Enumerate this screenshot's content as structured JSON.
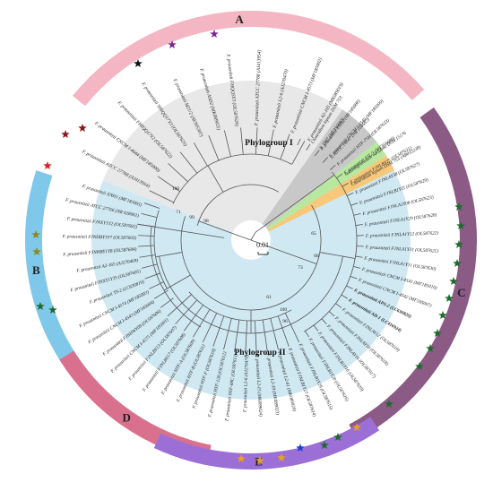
{
  "phylogroups": {
    "group1": "Phylogroup I",
    "group2": "Phylogroup II"
  },
  "scale_bar": "0.01",
  "arcs": [
    {
      "label": "A",
      "color": "#f4b6c2"
    },
    {
      "label": "B",
      "color": "#7fc8ea"
    },
    {
      "label": "C",
      "color": "#8b5a85"
    },
    {
      "label": "D",
      "color": "#d9708e"
    },
    {
      "label": "E",
      "color": "#9b6fd6"
    }
  ],
  "colors": {
    "group1_bg": "#e8e8e8",
    "group2_bg": "#cfe8f1",
    "outgroup_bg": "#c8c8c8",
    "green_strip": "#b8e8a0",
    "orange_strip": "#f7c87a",
    "branch": "#555555"
  },
  "leaves_group1": [
    "F. prausnitzii ATCC 27768 (AJ413954)",
    "F. prausnitzii CNCM I-4644 (MF185000)",
    "F. prausnitzii FHIQQ17Y2 (OL587622)",
    "F. prausnitzii SHIQQ17Y3 (OL587625)",
    "F. prausnitzii M21/2 (AY305307)",
    "F. prausnitzii ASD2 (MK089021)",
    "F. prausnitzii FHQQ5Y3 (OL587626)",
    "F. prausnitzii ATCC 27768 (AJ413954)",
    "F. prausnitzii L2-6 (AJ270470)",
    "F. prausnitzii CNCM I-4573 (MF185002)",
    "F. prausnitzii A2-165 (MK089019)"
  ],
  "leaves_outgroup": [
    "S. TM7 (MF356693)",
    "S. ATCC 14847 (NR 104687)"
  ],
  "leaf_green": "Subdoligranulum variabile DSM 15176",
  "leaf_orange": "Clostridium leptum DSM 753 (AB035238)",
  "leaves_group2": [
    "Clostridium leptum DSM 753",
    "F. prausnitzii XNH2 (MF185008)",
    "F. prausnitzii CNCM I-4540 (MF185009)",
    "F. prausnitzii HTF-75H (OL587633)",
    "F. prausnitzii S3L/3 (MF356688)",
    "F. prausnitzii FJNLBY25 (OL587631)",
    "F. prausnitzii FJNLAY38 (OL587627)",
    "F. prausnitzii FJNLB1Y11 (OL587629)",
    "F. prausnitzii FJNLA1Y08 (OL587623)",
    "F. prausnitzii FJNLA1Y29 (OL587628)",
    "F. prausnitzii FJNLA1Y12 (OL587622)",
    "F. prausnitzii FJNLA1Y31 (OL587621)",
    "F. prausnitzii FJNLA1Y11 (OL587630)",
    "F. prausnitzii CNCM I-4541 (MF185010)",
    "F. prausnitzii CNCM I-4542 (MF185007)",
    "F. prausnitzii APS-2 (LC630820)",
    "F. prausnitzii AD-1 (LC416924)",
    "F. prausnitzii FJNLAY12 (OL587619)",
    "F. prausnitzii FJNLAY10 (OL587618)",
    "F. prausnitzii FJNLAY16 (OL587617)",
    "F. prausnitzii FJNLB1Y16 (OL587620)",
    "F. prausnitzii FJNLB1Y20 (OL587616)",
    "F. prausnitzii FJNLB1Y29 (OL587615)",
    "F. prausnitzii FJNLB1Y27 (OL587614)",
    "F. prausnitzii L2-61 (MK089020)",
    "F. prausnitzii L2-39 (MK089023)",
    "F. prausnitzii L2-15 (MK089024)",
    "F. prausnitzii L2-6 (AJ270470)",
    "F. prausnitzii HTF-60C (OL587613)",
    "F. prausnitzii HTF-128 (OL587612)",
    "F. prausnitzii HTF-F (OL587610)",
    "F. prausnitzii HTF-B (OL587611)",
    "F. prausnitzii HTF-A (OL587609)",
    "F. prausnitzii FJNLBY17 (OL587608)",
    "F. prausnitzii FJNLBY13 (OL587607)",
    "F. prausnitzii CNCM I-4575 (MF185001)",
    "F. prausnitzii FJNHWY09 (OL587606)",
    "F. prausnitzii CNCM I-4543 (MF185004)",
    "F. prausnitzii CNCM I-4574 (MF185003)",
    "F. prausnitzii TY-2 (LC630819)",
    "F. prausnitzii FJNXY1Y35 (OL587605)",
    "F. prausnitzii A2-165 (AJ270469)",
    "F. prausnitzii FJNHBY1Y8 (OL587604)",
    "F. prausnitzii FJNHBY1Y7 (OL587603)",
    "F. prausnitzii FJNXY1Y2 (OL587602)",
    "F. prausnitzii ATCC 27766 (NR 028961)",
    "F. prausnitzii XNH1 (MF185005)"
  ],
  "bootstrap": [
    "100",
    "71",
    "99",
    "98",
    "68",
    "65",
    "73",
    "61",
    "100",
    "96"
  ],
  "stars": [
    {
      "color": "#7b2a8f"
    },
    {
      "color": "#7b2a8f"
    },
    {
      "color": "#111111"
    },
    {
      "color": "#8a1a1a"
    },
    {
      "color": "#8a1a1a"
    },
    {
      "color": "#e02020"
    },
    {
      "color": "#8a8a1a"
    },
    {
      "color": "#8a8a1a"
    },
    {
      "color": "#1e6b2e"
    },
    {
      "color": "#1e6b2e"
    },
    {
      "color": "#1e6b2e"
    },
    {
      "color": "#1e6b2e"
    },
    {
      "color": "#1e6b2e"
    },
    {
      "color": "#1e6b2e"
    },
    {
      "color": "#1e6b2e"
    },
    {
      "color": "#1e6b2e"
    },
    {
      "color": "#1e6b2e"
    },
    {
      "color": "#1e6b2e"
    },
    {
      "color": "#1e6b2e"
    },
    {
      "color": "#1e6b2e"
    },
    {
      "color": "#1e6b2e"
    },
    {
      "color": "#e8a020"
    },
    {
      "color": "#1e6b2e"
    },
    {
      "color": "#1e6b2e"
    },
    {
      "color": "#1a3fd6"
    },
    {
      "color": "#e8a020"
    },
    {
      "color": "#e8a020"
    },
    {
      "color": "#e8a020"
    }
  ]
}
